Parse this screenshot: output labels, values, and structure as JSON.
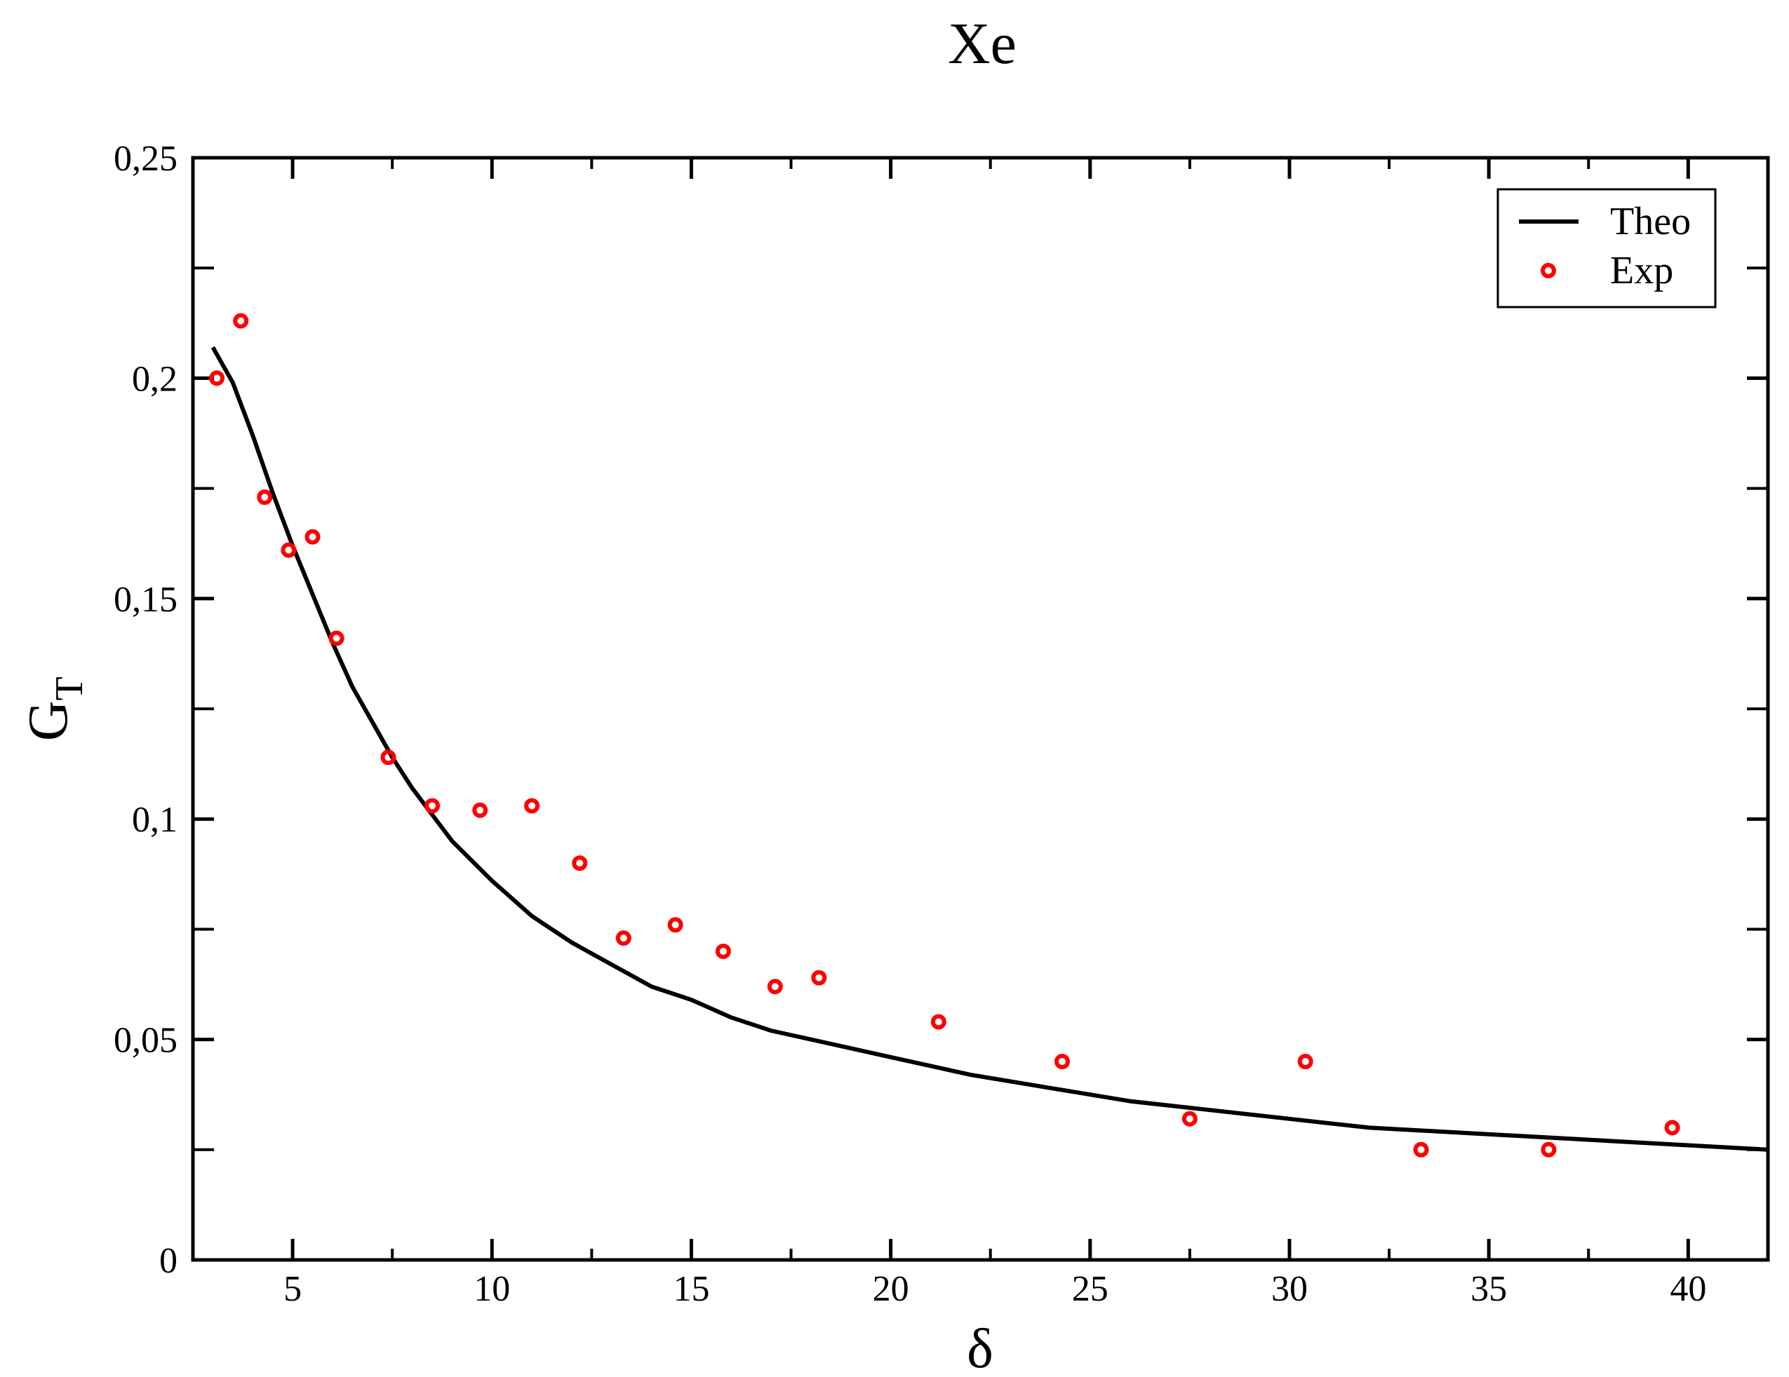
{
  "chart_data": {
    "type": "scatter",
    "title": "Xe",
    "xlabel": "δ",
    "ylabel": {
      "main": "G",
      "sub": "T"
    },
    "xlim": [
      2.5,
      42
    ],
    "ylim": [
      0,
      0.25
    ],
    "x_ticks": [
      5,
      10,
      15,
      20,
      25,
      30,
      35,
      40
    ],
    "x_tick_labels": [
      "5",
      "10",
      "15",
      "20",
      "25",
      "30",
      "35",
      "40"
    ],
    "y_ticks": [
      0,
      0.05,
      0.1,
      0.15,
      0.2,
      0.25
    ],
    "y_tick_labels": [
      "0",
      "0,05",
      "0,1",
      "0,15",
      "0,2",
      "0,25"
    ],
    "grid": false,
    "legend_position": "top-right",
    "series": [
      {
        "name": "Theo",
        "kind": "line",
        "color": "#000000",
        "x": [
          3.0,
          3.5,
          4,
          4.5,
          5,
          5.5,
          6,
          6.5,
          7,
          7.5,
          8,
          8.5,
          9,
          10,
          11,
          12,
          13,
          14,
          15,
          16,
          17,
          18,
          19,
          20,
          22,
          24,
          26,
          28,
          30,
          32,
          34,
          36,
          38,
          40,
          42
        ],
        "y": [
          0.207,
          0.199,
          0.187,
          0.174,
          0.162,
          0.151,
          0.14,
          0.13,
          0.122,
          0.114,
          0.107,
          0.101,
          0.095,
          0.086,
          0.078,
          0.072,
          0.067,
          0.062,
          0.059,
          0.055,
          0.052,
          0.05,
          0.048,
          0.046,
          0.042,
          0.039,
          0.036,
          0.034,
          0.032,
          0.03,
          0.029,
          0.028,
          0.027,
          0.026,
          0.025
        ]
      },
      {
        "name": "Exp",
        "kind": "scatter",
        "color": "#ff0000",
        "x": [
          3.1,
          3.7,
          4.3,
          4.9,
          5.5,
          6.1,
          7.4,
          8.5,
          9.7,
          11.0,
          12.2,
          13.3,
          14.6,
          15.8,
          17.1,
          18.2,
          21.2,
          24.3,
          27.5,
          30.4,
          33.3,
          36.5,
          39.6
        ],
        "y": [
          0.2,
          0.213,
          0.173,
          0.161,
          0.164,
          0.141,
          0.114,
          0.103,
          0.102,
          0.103,
          0.09,
          0.073,
          0.076,
          0.07,
          0.062,
          0.064,
          0.054,
          0.045,
          0.032,
          0.045,
          0.025,
          0.025,
          0.03
        ]
      }
    ]
  }
}
